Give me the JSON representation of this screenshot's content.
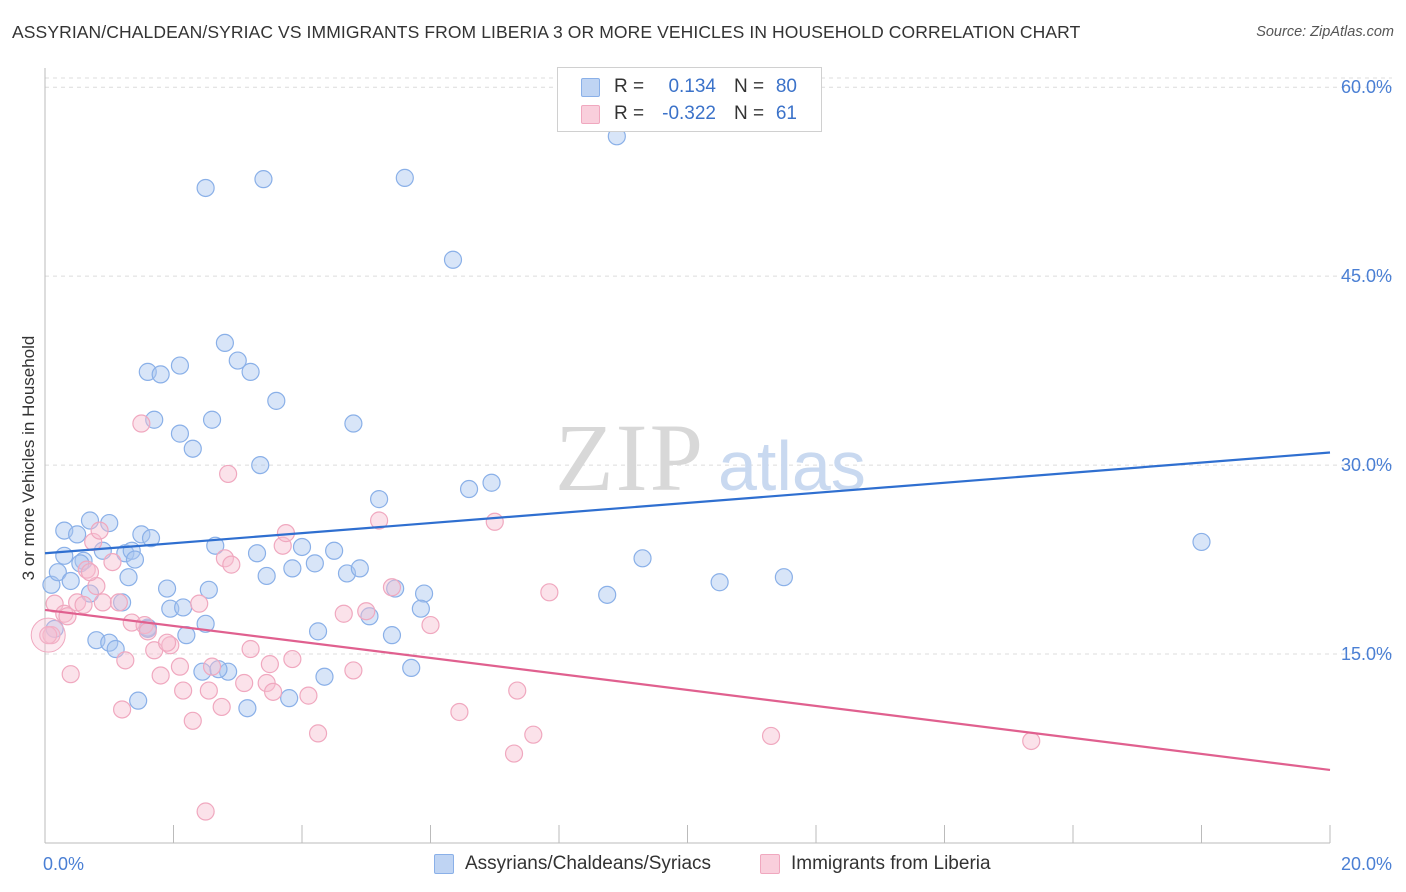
{
  "title": "ASSYRIAN/CHALDEAN/SYRIAC VS IMMIGRANTS FROM LIBERIA 3 OR MORE VEHICLES IN HOUSEHOLD CORRELATION CHART",
  "source": "Source: ZipAtlas.com",
  "watermark": {
    "zip": "ZIP",
    "atlas": "atlas"
  },
  "legend": {
    "r_label": "R =",
    "n_label": "N =",
    "rows": [
      {
        "r": "0.134",
        "n": "80",
        "color": "#8ab0e8"
      },
      {
        "r": "-0.322",
        "n": "61",
        "color": "#f0a8bf"
      }
    ]
  },
  "chart_data": {
    "type": "scatter",
    "title": "ASSYRIAN/CHALDEAN/SYRIAC VS IMMIGRANTS FROM LIBERIA 3 OR MORE VEHICLES IN HOUSEHOLD CORRELATION CHART",
    "xlabel": "",
    "ylabel": "3 or more Vehicles in Household",
    "xlim": [
      0,
      20
    ],
    "ylim": [
      0,
      62
    ],
    "x_tick_labels": [
      "0.0%",
      "20.0%"
    ],
    "y_ticks": [
      15,
      30,
      45,
      60
    ],
    "y_tick_labels": [
      "15.0%",
      "30.0%",
      "45.0%",
      "60.0%"
    ],
    "grid": true,
    "series": [
      {
        "name": "Assyrians/Chaldeans/Syriacs",
        "color": "#8ab0e8",
        "line_color": "#2f6fd0",
        "trend": {
          "x": [
            0,
            20
          ],
          "y": [
            23.0,
            31.0
          ]
        },
        "points": [
          [
            0.1,
            20.5
          ],
          [
            0.2,
            21.5
          ],
          [
            0.3,
            22.8
          ],
          [
            0.3,
            24.8
          ],
          [
            0.4,
            20.8
          ],
          [
            0.5,
            24.5
          ],
          [
            0.6,
            22.4
          ],
          [
            0.7,
            25.6
          ],
          [
            0.7,
            19.8
          ],
          [
            0.8,
            16.1
          ],
          [
            1.0,
            25.4
          ],
          [
            0.9,
            23.2
          ],
          [
            1.0,
            15.9
          ],
          [
            1.1,
            15.4
          ],
          [
            1.2,
            19.1
          ],
          [
            1.25,
            23.0
          ],
          [
            1.3,
            21.1
          ],
          [
            1.35,
            23.2
          ],
          [
            1.4,
            22.5
          ],
          [
            1.45,
            11.3
          ],
          [
            1.5,
            24.5
          ],
          [
            1.6,
            17.1
          ],
          [
            1.65,
            24.2
          ],
          [
            1.6,
            37.4
          ],
          [
            1.7,
            33.6
          ],
          [
            1.8,
            37.2
          ],
          [
            1.9,
            20.2
          ],
          [
            1.95,
            18.6
          ],
          [
            2.1,
            37.9
          ],
          [
            2.1,
            32.5
          ],
          [
            2.15,
            18.7
          ],
          [
            2.2,
            16.5
          ],
          [
            2.3,
            31.3
          ],
          [
            2.45,
            13.6
          ],
          [
            2.5,
            17.4
          ],
          [
            2.55,
            20.1
          ],
          [
            2.6,
            33.6
          ],
          [
            2.65,
            23.6
          ],
          [
            2.8,
            39.7
          ],
          [
            2.85,
            13.6
          ],
          [
            3.0,
            38.3
          ],
          [
            3.2,
            37.4
          ],
          [
            3.15,
            10.7
          ],
          [
            3.35,
            30.0
          ],
          [
            3.4,
            52.7
          ],
          [
            3.45,
            21.2
          ],
          [
            3.6,
            35.1
          ],
          [
            3.8,
            11.5
          ],
          [
            3.85,
            21.8
          ],
          [
            4.0,
            23.5
          ],
          [
            4.2,
            22.2
          ],
          [
            4.25,
            16.8
          ],
          [
            4.35,
            13.2
          ],
          [
            4.7,
            21.4
          ],
          [
            4.8,
            33.3
          ],
          [
            4.9,
            21.8
          ],
          [
            5.05,
            18.0
          ],
          [
            5.2,
            27.3
          ],
          [
            5.4,
            16.5
          ],
          [
            5.45,
            20.2
          ],
          [
            5.6,
            52.8
          ],
          [
            5.7,
            13.9
          ],
          [
            5.9,
            19.8
          ],
          [
            5.85,
            18.6
          ],
          [
            6.35,
            46.3
          ],
          [
            6.6,
            28.1
          ],
          [
            6.95,
            28.6
          ],
          [
            8.9,
            56.1
          ],
          [
            8.75,
            19.7
          ],
          [
            9.3,
            22.6
          ],
          [
            10.5,
            20.7
          ],
          [
            11.5,
            21.1
          ],
          [
            18.0,
            23.9
          ],
          [
            2.5,
            52.0
          ],
          [
            1.6,
            17.0
          ],
          [
            2.7,
            13.8
          ],
          [
            0.15,
            17.0
          ],
          [
            4.5,
            23.2
          ],
          [
            3.3,
            23.0
          ],
          [
            0.55,
            22.2
          ]
        ]
      },
      {
        "name": "Immigrants from Liberia",
        "color": "#f0a8bf",
        "line_color": "#e0608f",
        "trend": {
          "x": [
            0,
            20
          ],
          "y": [
            18.5,
            5.8
          ]
        },
        "points": [
          [
            0.1,
            16.5
          ],
          [
            0.15,
            19.0
          ],
          [
            0.3,
            18.2
          ],
          [
            0.4,
            13.4
          ],
          [
            0.5,
            19.1
          ],
          [
            0.6,
            18.9
          ],
          [
            0.65,
            21.7
          ],
          [
            0.75,
            23.9
          ],
          [
            0.8,
            20.4
          ],
          [
            0.85,
            24.8
          ],
          [
            0.9,
            19.1
          ],
          [
            1.05,
            22.3
          ],
          [
            1.15,
            19.1
          ],
          [
            1.2,
            10.6
          ],
          [
            1.25,
            14.5
          ],
          [
            1.35,
            17.5
          ],
          [
            1.5,
            33.3
          ],
          [
            1.55,
            17.3
          ],
          [
            1.6,
            16.8
          ],
          [
            1.7,
            15.3
          ],
          [
            1.8,
            13.3
          ],
          [
            1.95,
            15.7
          ],
          [
            2.1,
            14.0
          ],
          [
            2.15,
            12.1
          ],
          [
            2.3,
            9.7
          ],
          [
            2.4,
            19.0
          ],
          [
            2.5,
            2.5
          ],
          [
            2.55,
            12.1
          ],
          [
            2.6,
            14.0
          ],
          [
            2.75,
            10.8
          ],
          [
            2.8,
            22.6
          ],
          [
            2.85,
            29.3
          ],
          [
            2.9,
            22.1
          ],
          [
            3.1,
            12.7
          ],
          [
            3.2,
            15.4
          ],
          [
            3.45,
            12.7
          ],
          [
            3.5,
            14.2
          ],
          [
            3.55,
            12.0
          ],
          [
            3.7,
            23.6
          ],
          [
            3.75,
            24.6
          ],
          [
            3.85,
            14.6
          ],
          [
            4.1,
            11.7
          ],
          [
            4.25,
            8.7
          ],
          [
            4.65,
            18.2
          ],
          [
            4.8,
            13.7
          ],
          [
            5.0,
            18.4
          ],
          [
            5.2,
            25.6
          ],
          [
            5.4,
            20.3
          ],
          [
            6.0,
            17.3
          ],
          [
            6.45,
            10.4
          ],
          [
            7.0,
            25.5
          ],
          [
            7.3,
            7.1
          ],
          [
            7.35,
            12.1
          ],
          [
            7.6,
            8.6
          ],
          [
            7.85,
            19.9
          ],
          [
            11.3,
            8.5
          ],
          [
            15.35,
            8.1
          ],
          [
            0.35,
            18.0
          ],
          [
            0.7,
            21.5
          ],
          [
            1.9,
            15.9
          ],
          [
            0.05,
            16.5
          ]
        ]
      }
    ]
  },
  "bottom_legend": [
    {
      "label": "Assyrians/Chaldeans/Syriacs",
      "color": "#8ab0e8"
    },
    {
      "label": "Immigrants from Liberia",
      "color": "#f0a8bf"
    }
  ]
}
